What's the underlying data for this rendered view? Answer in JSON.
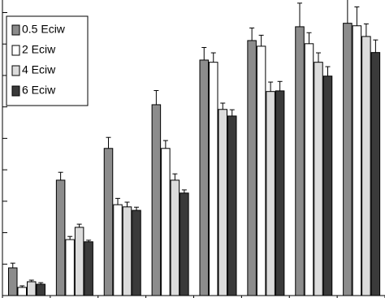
{
  "chart_data": {
    "type": "bar",
    "categories": [
      null,
      null,
      null,
      null,
      null,
      null,
      null,
      null
    ],
    "series": [
      {
        "name": "0.5 Eciw",
        "color": "#8c8c8c",
        "values": [
          0.88,
          3.67,
          4.68,
          6.07,
          7.49,
          8.11,
          8.55,
          8.66
        ],
        "errors": [
          0.15,
          0.25,
          0.35,
          0.45,
          0.4,
          0.4,
          0.75,
          0.85
        ]
      },
      {
        "name": "2 Eciw",
        "color": "#ffffff",
        "values": [
          0.26,
          1.78,
          2.89,
          4.68,
          7.42,
          7.93,
          8.01,
          8.58
        ],
        "errors": [
          0.05,
          0.1,
          0.2,
          0.25,
          0.3,
          0.35,
          0.35,
          0.6
        ]
      },
      {
        "name": "4 Eciw",
        "color": "#dcdcdc",
        "values": [
          0.44,
          2.17,
          2.82,
          3.67,
          5.92,
          6.49,
          7.42,
          8.24
        ],
        "errors": [
          0.05,
          0.1,
          0.15,
          0.2,
          0.2,
          0.3,
          0.3,
          0.4
        ]
      },
      {
        "name": "6 Eciw",
        "color": "#3a3a3a",
        "values": [
          0.36,
          1.71,
          2.71,
          3.26,
          5.71,
          6.51,
          6.98,
          7.73
        ],
        "errors": [
          0.05,
          0.05,
          0.1,
          0.1,
          0.2,
          0.3,
          0.3,
          0.4
        ]
      }
    ],
    "ylim": [
      0,
      9.4
    ],
    "yticks": [
      0,
      1,
      2,
      3,
      4,
      5,
      6,
      7,
      8,
      9
    ],
    "legend": "upper left"
  }
}
